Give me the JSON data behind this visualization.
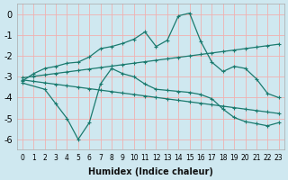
{
  "xlabel": "Humidex (Indice chaleur)",
  "bg_color": "#cfe8f0",
  "grid_color": "#f0b0b0",
  "line_color": "#1a7a6e",
  "xlim": [
    -0.5,
    23.5
  ],
  "ylim": [
    -6.5,
    0.5
  ],
  "yticks": [
    0,
    -1,
    -2,
    -3,
    -4,
    -5,
    -6
  ],
  "xticks": [
    0,
    1,
    2,
    3,
    4,
    5,
    6,
    7,
    8,
    9,
    10,
    11,
    12,
    13,
    14,
    15,
    16,
    17,
    18,
    19,
    20,
    21,
    22,
    23
  ],
  "line1_x": [
    0,
    1,
    2,
    3,
    4,
    5,
    6,
    7,
    8,
    9,
    10,
    11,
    12,
    13,
    14,
    15,
    16,
    17,
    18,
    19,
    20,
    21,
    22,
    23
  ],
  "line1_y": [
    -3.2,
    -2.85,
    -2.6,
    -2.5,
    -2.35,
    -2.3,
    -2.05,
    -1.65,
    -1.55,
    -1.4,
    -1.2,
    -0.85,
    -1.55,
    -1.25,
    -0.08,
    0.05,
    -1.3,
    -2.3,
    -2.75,
    -2.5,
    -2.6,
    -3.1,
    -3.8,
    -4.0
  ],
  "line2_x": [
    0,
    1,
    2,
    3,
    4,
    5,
    6,
    7,
    8,
    9,
    10,
    11,
    12,
    13,
    14,
    15,
    16,
    17,
    18,
    19,
    20,
    21,
    22,
    23
  ],
  "line2_y": [
    -3.05,
    -2.98,
    -2.91,
    -2.84,
    -2.77,
    -2.7,
    -2.63,
    -2.56,
    -2.49,
    -2.42,
    -2.35,
    -2.28,
    -2.21,
    -2.14,
    -2.07,
    -2.0,
    -1.93,
    -1.86,
    -1.79,
    -1.72,
    -1.65,
    -1.58,
    -1.51,
    -1.44
  ],
  "line3_x": [
    0,
    1,
    2,
    3,
    4,
    5,
    6,
    7,
    8,
    9,
    10,
    11,
    12,
    13,
    14,
    15,
    16,
    17,
    18,
    19,
    20,
    21,
    22,
    23
  ],
  "line3_y": [
    -3.15,
    -3.22,
    -3.29,
    -3.36,
    -3.43,
    -3.5,
    -3.57,
    -3.64,
    -3.71,
    -3.78,
    -3.85,
    -3.92,
    -3.99,
    -4.06,
    -4.13,
    -4.2,
    -4.27,
    -4.34,
    -4.41,
    -4.48,
    -4.55,
    -4.62,
    -4.69,
    -4.76
  ],
  "line4_x": [
    0,
    2,
    3,
    4,
    5,
    6,
    7,
    8,
    9,
    10,
    11,
    12,
    13,
    14,
    15,
    16,
    17,
    18,
    19,
    20,
    21,
    22,
    23
  ],
  "line4_y": [
    -3.3,
    -3.6,
    -4.3,
    -5.0,
    -6.0,
    -5.2,
    -3.35,
    -2.6,
    -2.85,
    -3.0,
    -3.35,
    -3.6,
    -3.65,
    -3.7,
    -3.75,
    -3.85,
    -4.05,
    -4.55,
    -4.95,
    -5.15,
    -5.25,
    -5.35,
    -5.2
  ]
}
